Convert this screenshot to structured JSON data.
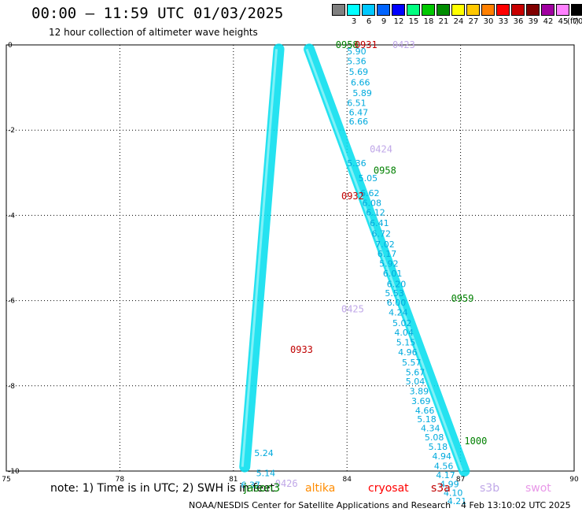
{
  "header": {
    "title": "00:00 – 11:59 UTC 01/03/2025",
    "subtitle": "12 hour collection of altimeter wave heights"
  },
  "legend": {
    "unit": "(ft)",
    "items": [
      {
        "label": "",
        "color": "#808080"
      },
      {
        "label": "3",
        "color": "#00ffff"
      },
      {
        "label": "6",
        "color": "#00c8ff"
      },
      {
        "label": "9",
        "color": "#0064ff"
      },
      {
        "label": "12",
        "color": "#0000ff"
      },
      {
        "label": "15",
        "color": "#00ff80"
      },
      {
        "label": "18",
        "color": "#00c800"
      },
      {
        "label": "21",
        "color": "#008c00"
      },
      {
        "label": "24",
        "color": "#ffff00"
      },
      {
        "label": "27",
        "color": "#ffc800"
      },
      {
        "label": "30",
        "color": "#ff8000"
      },
      {
        "label": "33",
        "color": "#ff0000"
      },
      {
        "label": "36",
        "color": "#c80000"
      },
      {
        "label": "39",
        "color": "#800000"
      },
      {
        "label": "42",
        "color": "#a000a0"
      },
      {
        "label": "45",
        "color": "#ff80ff"
      },
      {
        "label": "70",
        "color": "#000000"
      }
    ]
  },
  "axes": {
    "lon_ticks": [
      "75",
      "78",
      "81",
      "84",
      "87",
      "90"
    ],
    "lat_ticks": [
      "0",
      "-2",
      "-4",
      "-6",
      "-8",
      "-10"
    ]
  },
  "map": {
    "lon_range": [
      75,
      90
    ],
    "lat_range": [
      -10,
      0
    ],
    "track_color": "#00ddee",
    "track_label_color": "#00aadd",
    "tracks": [
      {
        "name": "west-track",
        "start": [
          82.2,
          -0.1
        ],
        "end": [
          81.3,
          -9.9
        ]
      },
      {
        "name": "east-track",
        "start": [
          83.0,
          -0.1
        ],
        "end": [
          87.1,
          -10.0
        ]
      }
    ],
    "readings": [
      {
        "value": "5.90",
        "lon": 84.0,
        "lat": -0.22
      },
      {
        "value": "5.36",
        "lon": 84.0,
        "lat": -0.45
      },
      {
        "value": "5.69",
        "lon": 84.05,
        "lat": -0.7
      },
      {
        "value": "6.66",
        "lon": 84.1,
        "lat": -0.95
      },
      {
        "value": "5.89",
        "lon": 84.15,
        "lat": -1.2
      },
      {
        "value": "6.51",
        "lon": 84.0,
        "lat": -1.43
      },
      {
        "value": "6.47",
        "lon": 84.05,
        "lat": -1.65
      },
      {
        "value": "6.66",
        "lon": 84.05,
        "lat": -1.87
      },
      {
        "value": "5.36",
        "lon": 84.0,
        "lat": -2.85
      },
      {
        "value": "5.05",
        "lon": 84.3,
        "lat": -3.2
      },
      {
        "value": "6.62",
        "lon": 84.35,
        "lat": -3.55
      },
      {
        "value": "6.08",
        "lon": 84.4,
        "lat": -3.78
      },
      {
        "value": "6.12",
        "lon": 84.5,
        "lat": -4.0
      },
      {
        "value": "6.41",
        "lon": 84.6,
        "lat": -4.25
      },
      {
        "value": "6.72",
        "lon": 84.65,
        "lat": -4.5
      },
      {
        "value": "7.02",
        "lon": 84.75,
        "lat": -4.75
      },
      {
        "value": "6.17",
        "lon": 84.8,
        "lat": -4.97
      },
      {
        "value": "5.92",
        "lon": 84.85,
        "lat": -5.2
      },
      {
        "value": "6.01",
        "lon": 84.95,
        "lat": -5.43
      },
      {
        "value": "6.20",
        "lon": 85.05,
        "lat": -5.68
      },
      {
        "value": "5.53",
        "lon": 85.0,
        "lat": -5.9
      },
      {
        "value": "6.00",
        "lon": 85.05,
        "lat": -6.12
      },
      {
        "value": "4.24",
        "lon": 85.1,
        "lat": -6.35
      },
      {
        "value": "5.02",
        "lon": 85.2,
        "lat": -6.6
      },
      {
        "value": "4.04",
        "lon": 85.25,
        "lat": -6.82
      },
      {
        "value": "5.15",
        "lon": 85.3,
        "lat": -7.05
      },
      {
        "value": "4.96",
        "lon": 85.35,
        "lat": -7.28
      },
      {
        "value": "5.57",
        "lon": 85.45,
        "lat": -7.52
      },
      {
        "value": "5.67",
        "lon": 85.55,
        "lat": -7.75
      },
      {
        "value": "5.04",
        "lon": 85.55,
        "lat": -7.97
      },
      {
        "value": "3.89",
        "lon": 85.65,
        "lat": -8.2
      },
      {
        "value": "3.69",
        "lon": 85.7,
        "lat": -8.43
      },
      {
        "value": "4.66",
        "lon": 85.8,
        "lat": -8.65
      },
      {
        "value": "5.18",
        "lon": 85.85,
        "lat": -8.85
      },
      {
        "value": "4.34",
        "lon": 85.95,
        "lat": -9.07
      },
      {
        "value": "5.08",
        "lon": 86.05,
        "lat": -9.28
      },
      {
        "value": "5.18",
        "lon": 86.15,
        "lat": -9.5
      },
      {
        "value": "4.94",
        "lon": 86.25,
        "lat": -9.72
      },
      {
        "value": "4.56",
        "lon": 86.3,
        "lat": -9.95
      },
      {
        "value": "4.17",
        "lon": 86.35,
        "lat": -10.17
      },
      {
        "value": "4.99",
        "lon": 86.45,
        "lat": -10.38
      },
      {
        "value": "4.10",
        "lon": 86.55,
        "lat": -10.58
      },
      {
        "value": "4.21",
        "lon": 86.65,
        "lat": -10.78
      },
      {
        "value": "6.37",
        "lon": 81.2,
        "lat": -10.4
      },
      {
        "value": "5.14",
        "lon": 81.6,
        "lat": -10.12
      },
      {
        "value": "5.24",
        "lon": 81.55,
        "lat": -9.65
      }
    ],
    "pass_labels": [
      {
        "text": "0958",
        "satellite": "jason3",
        "lon": 83.7,
        "lat": 0.0
      },
      {
        "text": "0931",
        "satellite": "s3a",
        "lon": 84.2,
        "lat": 0.0
      },
      {
        "text": "0423",
        "satellite": "s3b",
        "lon": 85.2,
        "lat": 0.0
      },
      {
        "text": "0424",
        "satellite": "s3b",
        "lon": 84.6,
        "lat": -2.45
      },
      {
        "text": "0958",
        "satellite": "jason3",
        "lon": 84.7,
        "lat": -2.95
      },
      {
        "text": "0932",
        "satellite": "s3a",
        "lon": 83.85,
        "lat": -3.55
      },
      {
        "text": "0959",
        "satellite": "jason3",
        "lon": 86.75,
        "lat": -5.95
      },
      {
        "text": "0425",
        "satellite": "s3b",
        "lon": 83.85,
        "lat": -6.2
      },
      {
        "text": "0933",
        "satellite": "s3a",
        "lon": 82.5,
        "lat": -7.15
      },
      {
        "text": "1000",
        "satellite": "jason3",
        "lon": 87.1,
        "lat": -9.3
      },
      {
        "text": "0426",
        "satellite": "s3b",
        "lon": 82.1,
        "lat": -10.3
      }
    ]
  },
  "footer": {
    "note": "note: 1) Time is in UTC; 2) SWH is in feet",
    "satellites": [
      {
        "name": "jason3",
        "color": "#008000"
      },
      {
        "name": "altika",
        "color": "#ff8c00"
      },
      {
        "name": "cryosat",
        "color": "#ff0000"
      },
      {
        "name": "s3a",
        "color": "#c00000"
      },
      {
        "name": "s3b",
        "color": "#c0a8e8"
      },
      {
        "name": "swot",
        "color": "#e898e8"
      }
    ],
    "credit": "NOAA/NESDIS Center for Satellite Applications and Research",
    "timestamp": "4 Feb 13:10:02 UTC 2025"
  }
}
